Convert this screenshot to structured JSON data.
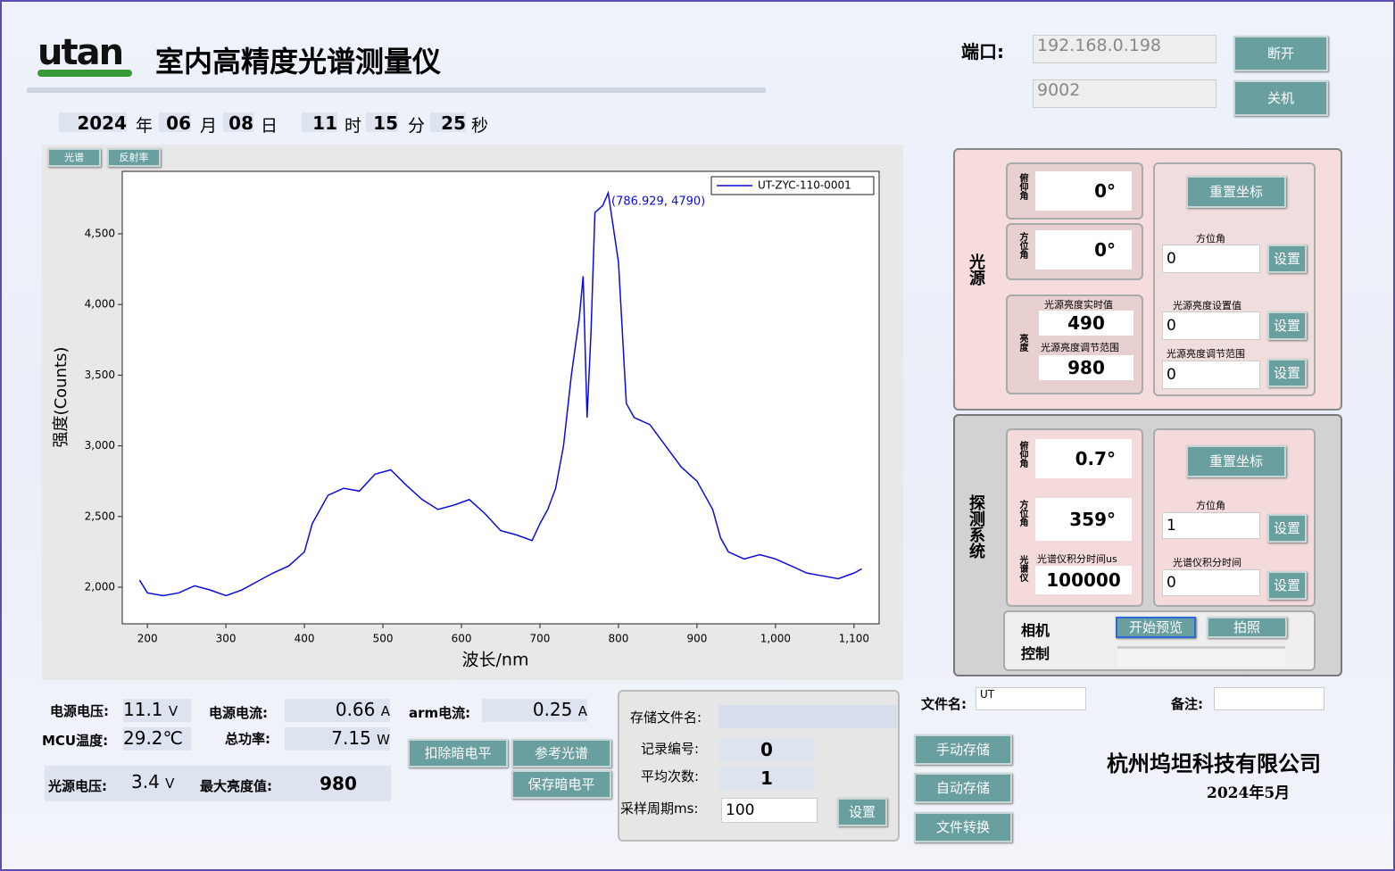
{
  "header": {
    "logo": "utan",
    "title": "室内高精度光谱测量仪"
  },
  "connection": {
    "label": "端口:",
    "ip": "192.168.0.198",
    "port": "9002",
    "disconnect": "断开",
    "shutdown": "关机"
  },
  "datetime": {
    "year": "2024",
    "year_unit": "年",
    "month": "06",
    "month_unit": "月",
    "day": "08",
    "day_unit": "日",
    "hour": "11",
    "hour_unit": "时",
    "minute": "15",
    "minute_unit": "分",
    "second": "25",
    "second_unit": "秒"
  },
  "tabs": [
    "光谱",
    "反射率"
  ],
  "chart_data": {
    "type": "line",
    "x_label": "波长/nm",
    "y_label": "强度(Counts)",
    "annotation": "(786.929, 4790)",
    "x": [
      190,
      200,
      220,
      240,
      260,
      280,
      300,
      320,
      340,
      360,
      380,
      400,
      410,
      430,
      450,
      470,
      490,
      510,
      530,
      550,
      570,
      590,
      610,
      630,
      650,
      670,
      690,
      700,
      710,
      720,
      730,
      740,
      750,
      755,
      760,
      765,
      770,
      780,
      786.929,
      800,
      810,
      820,
      840,
      860,
      880,
      900,
      920,
      930,
      940,
      960,
      980,
      1000,
      1020,
      1040,
      1060,
      1080,
      1100,
      1110
    ],
    "series": [
      {
        "name": "UT-ZYC-110-0001",
        "color": "#0a0ae6",
        "values": [
          2050,
          1960,
          1940,
          1960,
          2010,
          1980,
          1940,
          1980,
          2040,
          2100,
          2150,
          2250,
          2450,
          2650,
          2700,
          2680,
          2800,
          2830,
          2720,
          2620,
          2550,
          2580,
          2620,
          2520,
          2400,
          2370,
          2330,
          2450,
          2550,
          2700,
          3000,
          3500,
          3900,
          4200,
          3200,
          3800,
          4650,
          4700,
          4790,
          4300,
          3300,
          3200,
          3150,
          3000,
          2850,
          2750,
          2550,
          2350,
          2250,
          2200,
          2230,
          2200,
          2150,
          2100,
          2080,
          2060,
          2100,
          2130
        ]
      }
    ],
    "xlim": [
      168,
      1132
    ],
    "ylim": [
      1741,
      4942
    ],
    "xticks": [
      200,
      300,
      400,
      500,
      600,
      700,
      800,
      900,
      {
        "value": 1000,
        "label": "1,000"
      },
      {
        "value": 1100,
        "label": "1,100"
      }
    ],
    "yticks": [
      {
        "value": 2000,
        "label": "2,000"
      },
      {
        "value": 2500,
        "label": "2,500"
      },
      {
        "value": 3000,
        "label": "3,000"
      },
      {
        "value": 3500,
        "label": "3,500"
      },
      {
        "value": 4000,
        "label": "4,000"
      },
      {
        "value": 4500,
        "label": "4,500"
      }
    ],
    "legend": "upper right"
  },
  "light_source": {
    "title": "光源",
    "pitch_label": "俯仰角",
    "pitch": "0°",
    "azimuth_label": "方位角",
    "azimuth": "0°",
    "brightness_label": "亮度",
    "realtime_label": "光源亮度实时值",
    "realtime": "490",
    "range_label": "光源亮度调节范围",
    "range": "980",
    "reset": "重置坐标",
    "set_azimuth_label": "方位角",
    "set_azimuth": "0",
    "set_azimuth_btn": "设置",
    "set_brightness_label": "光源亮度设置值",
    "set_brightness": "0",
    "set_brightness_btn": "设置",
    "set_range_label": "光源亮度调节范围",
    "set_range": "0",
    "set_range_btn": "设置"
  },
  "detector": {
    "title": "探测系统",
    "pitch_label": "俯仰角",
    "pitch": "0.7°",
    "azimuth_label": "方位角",
    "azimuth": "359°",
    "spectrometer_label": "光谱仪",
    "integration_label": "光谱仪积分时间us",
    "integration": "100000",
    "reset": "重置坐标",
    "set_azimuth_label": "方位角",
    "set_azimuth": "1",
    "set_azimuth_btn": "设置",
    "set_integration_label": "光谱仪积分时间",
    "set_integration": "0",
    "set_integration_btn": "设置",
    "camera_label": "相机控制",
    "preview": "开始预览",
    "photo": "拍照"
  },
  "status": {
    "supply_voltage_label": "电源电压:",
    "supply_voltage": "11.1",
    "supply_voltage_unit": "V",
    "supply_current_label": "电源电流:",
    "supply_current": "0.66",
    "supply_current_unit": "A",
    "arm_current_label": "arm电流:",
    "arm_current": "0.25",
    "arm_current_unit": "A",
    "mcu_temp_label": "MCU温度:",
    "mcu_temp": "29.2℃",
    "power_label": "总功率:",
    "power": "7.15",
    "power_unit": "W",
    "source_voltage_label": "光源电压:",
    "source_voltage": "3.4",
    "source_voltage_unit": "V",
    "max_brightness_label": "最大亮度值:",
    "max_brightness": "980"
  },
  "actions": {
    "subtract_dark": "扣除暗电平",
    "reference": "参考光谱",
    "save_dark": "保存暗电平"
  },
  "storage": {
    "filename_label": "存储文件名:",
    "record_label": "记录编号:",
    "record": "0",
    "average_label": "平均次数:",
    "average": "1",
    "period_label": "采样周期ms:",
    "period": "100",
    "set": "设置",
    "manual": "手动存储",
    "auto": "自动存储",
    "convert": "文件转换"
  },
  "file": {
    "name_label": "文件名:",
    "name": "UT",
    "note_label": "备注:"
  },
  "footer": {
    "company": "杭州坞坦科技有限公司",
    "date": "2024年5月"
  }
}
